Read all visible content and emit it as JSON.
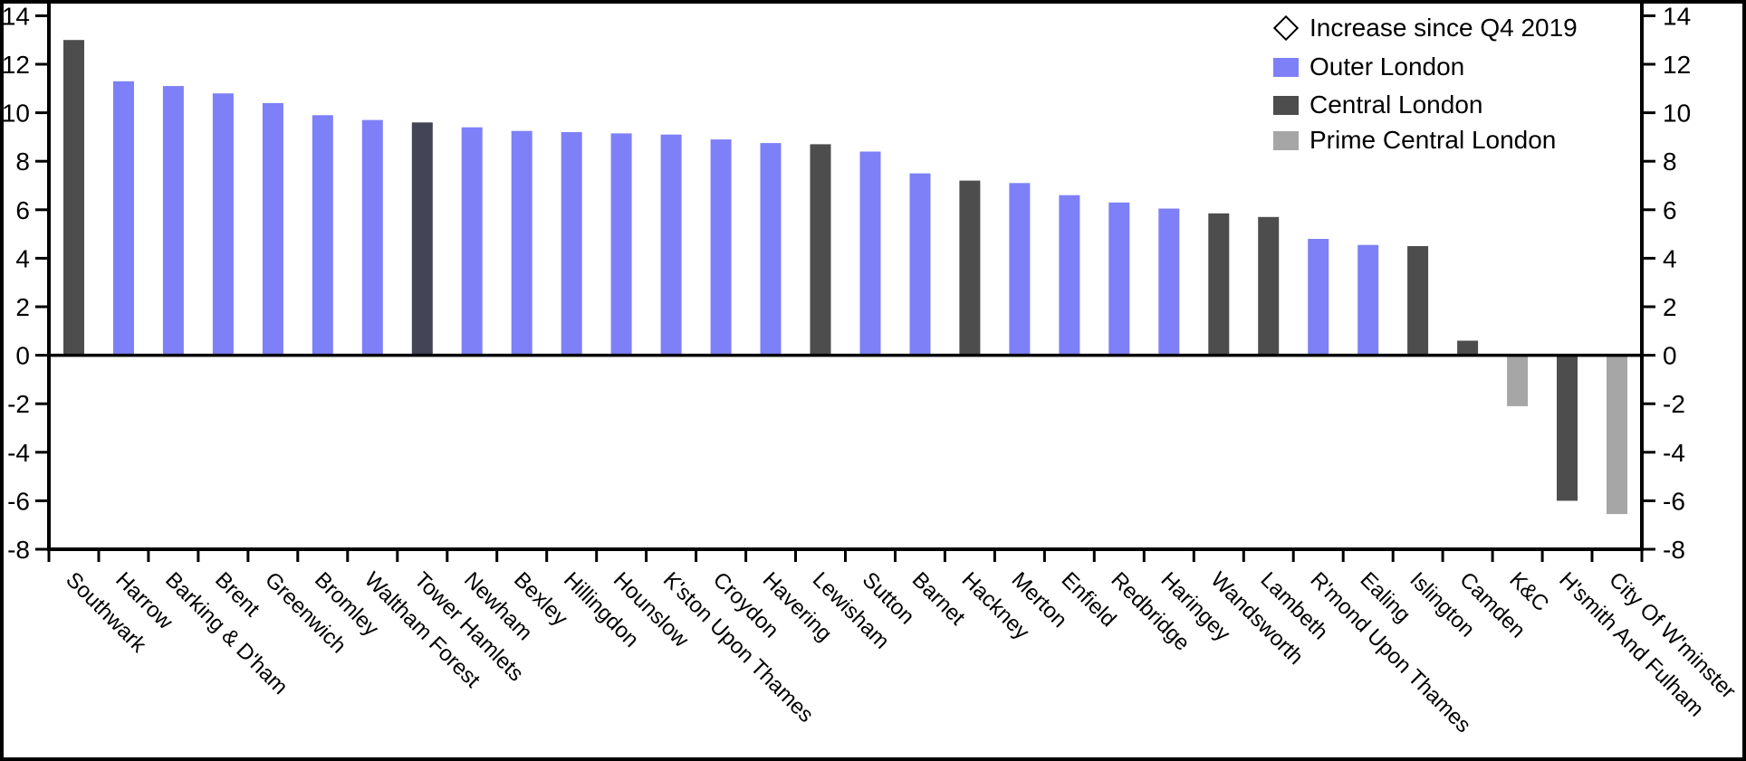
{
  "chart_data": {
    "type": "bar",
    "title": "",
    "xlabel": "",
    "ylabel": "",
    "ylim": [
      -8,
      14.5
    ],
    "yticks": [
      14,
      12,
      10,
      8,
      6,
      4,
      2,
      0,
      -2,
      -4,
      -6,
      -8
    ],
    "axis_label_sides": "both",
    "grid": false,
    "background_color": "#FFFFFF",
    "frame_color": "#000000",
    "legend_position": "top-right",
    "legend": [
      {
        "label": "Increase since Q4 2019",
        "marker": "diamond-outline",
        "color": "#FFFFFF"
      },
      {
        "label": "Outer London",
        "marker": "square",
        "color": "#7E80F7"
      },
      {
        "label": "Central London",
        "marker": "square",
        "color": "#4D4D4D"
      },
      {
        "label": "Prime Central London",
        "marker": "square",
        "color": "#A6A6A6"
      }
    ],
    "groups": {
      "outer": {
        "label": "Outer London",
        "color": "#7E80F7"
      },
      "central": {
        "label": "Central London",
        "color": "#4D4D4D"
      },
      "prime": {
        "label": "Prime Central London",
        "color": "#A6A6A6"
      }
    },
    "bars": [
      {
        "category": "Southwark",
        "value": 13.0,
        "group": "central"
      },
      {
        "category": "Harrow",
        "value": 11.3,
        "group": "outer"
      },
      {
        "category": "Barking & D'ham",
        "value": 11.1,
        "group": "outer"
      },
      {
        "category": "Brent",
        "value": 10.8,
        "group": "outer"
      },
      {
        "category": "Greenwich",
        "value": 10.4,
        "group": "outer"
      },
      {
        "category": "Bromley",
        "value": 9.9,
        "group": "outer"
      },
      {
        "category": "Waltham Forest",
        "value": 9.7,
        "group": "outer"
      },
      {
        "category": "Tower Hamlets",
        "value": 9.6,
        "group": "central",
        "color": "#434456"
      },
      {
        "category": "Newham",
        "value": 9.4,
        "group": "outer"
      },
      {
        "category": "Bexley",
        "value": 9.25,
        "group": "outer"
      },
      {
        "category": "Hillingdon",
        "value": 9.2,
        "group": "outer"
      },
      {
        "category": "Hounslow",
        "value": 9.15,
        "group": "outer"
      },
      {
        "category": "K'ston Upon Thames",
        "value": 9.1,
        "group": "outer"
      },
      {
        "category": "Croydon",
        "value": 8.9,
        "group": "outer"
      },
      {
        "category": "Havering",
        "value": 8.75,
        "group": "outer"
      },
      {
        "category": "Lewisham",
        "value": 8.7,
        "group": "central"
      },
      {
        "category": "Sutton",
        "value": 8.4,
        "group": "outer"
      },
      {
        "category": "Barnet",
        "value": 7.5,
        "group": "outer"
      },
      {
        "category": "Hackney",
        "value": 7.2,
        "group": "central"
      },
      {
        "category": "Merton",
        "value": 7.1,
        "group": "outer"
      },
      {
        "category": "Enfield",
        "value": 6.6,
        "group": "outer"
      },
      {
        "category": "Redbridge",
        "value": 6.3,
        "group": "outer"
      },
      {
        "category": "Haringey",
        "value": 6.05,
        "group": "outer"
      },
      {
        "category": "Wandsworth",
        "value": 5.85,
        "group": "central"
      },
      {
        "category": "Lambeth",
        "value": 5.7,
        "group": "central"
      },
      {
        "category": "R'mond Upon Thames",
        "value": 4.8,
        "group": "outer"
      },
      {
        "category": "Ealing",
        "value": 4.55,
        "group": "outer"
      },
      {
        "category": "Islington",
        "value": 4.5,
        "group": "central"
      },
      {
        "category": "Camden",
        "value": 0.6,
        "group": "central"
      },
      {
        "category": "K&C",
        "value": -2.1,
        "group": "prime"
      },
      {
        "category": "H'smith And Fulham",
        "value": -6.0,
        "group": "central"
      },
      {
        "category": "City Of W'minster",
        "value": -6.55,
        "group": "prime"
      }
    ]
  }
}
